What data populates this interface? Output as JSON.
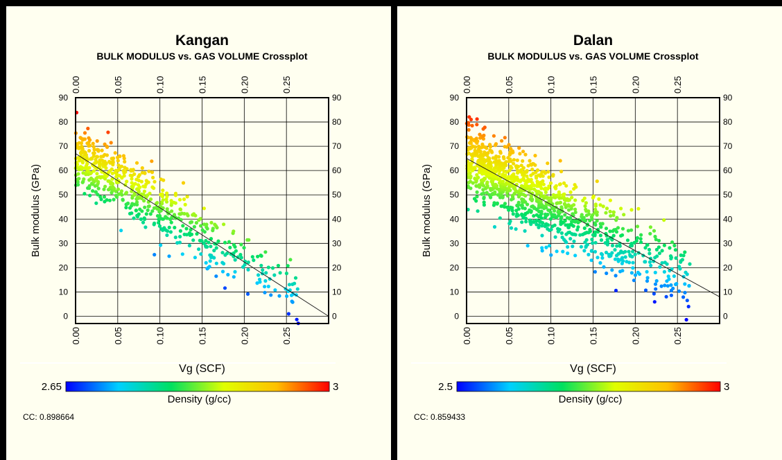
{
  "chart_data": [
    {
      "type": "scatter",
      "title": "Kangan",
      "subtitle": "BULK MODULUS vs. GAS VOLUME Crossplot",
      "xlabel": "Vg  (SCF)",
      "ylabel": "Bulk  modulus (GPa)",
      "xlim": [
        0.0,
        0.3
      ],
      "ylim": [
        -3,
        90
      ],
      "x_ticks": [
        "0.00",
        "0.05",
        "0.10",
        "0.15",
        "0.20",
        "0.25"
      ],
      "y_ticks": [
        "0",
        "10",
        "20",
        "30",
        "40",
        "50",
        "60",
        "70",
        "80",
        "90"
      ],
      "grid": true,
      "trend_line": {
        "x": [
          0.0,
          0.3
        ],
        "y": [
          67,
          0
        ]
      },
      "colorbar": {
        "label": "Density (g/cc)",
        "min": "2.65",
        "max": "3",
        "colormap": [
          "#0000ff",
          "#00d0ff",
          "#00e060",
          "#e0ff00",
          "#ffc000",
          "#ff0000"
        ]
      },
      "cc": "CC: 0.898664",
      "point_count": 600,
      "point_spread": 6.5,
      "density_range": [
        2.65,
        3.0
      ],
      "density_coefficient": -0.9
    },
    {
      "type": "scatter",
      "title": "Dalan",
      "subtitle": "BULK MODULUS vs. GAS VOLUME Crossplot",
      "xlabel": "Vg  (SCF)",
      "ylabel": "Bulk  modulus (GPa)",
      "xlim": [
        0.0,
        0.3
      ],
      "ylim": [
        -3,
        90
      ],
      "x_ticks": [
        "0.00",
        "0.05",
        "0.10",
        "0.15",
        "0.20",
        "0.25"
      ],
      "y_ticks": [
        "0",
        "10",
        "20",
        "30",
        "40",
        "50",
        "60",
        "70",
        "80",
        "90"
      ],
      "grid": true,
      "trend_line": {
        "x": [
          0.0,
          0.3
        ],
        "y": [
          65,
          8
        ]
      },
      "colorbar": {
        "label": "Density (g/cc)",
        "min": "2.5",
        "max": "3",
        "colormap": [
          "#0000ff",
          "#00d0ff",
          "#00e060",
          "#e0ff00",
          "#ffc000",
          "#ff0000"
        ]
      },
      "cc": "CC: 0.859433",
      "point_count": 1100,
      "point_spread": 7.5,
      "density_range": [
        2.5,
        3.0
      ],
      "density_coefficient": -0.86
    }
  ]
}
